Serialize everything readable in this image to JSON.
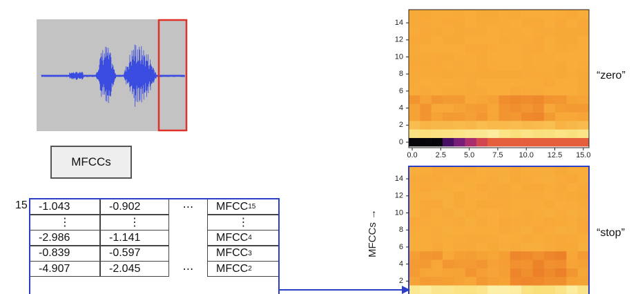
{
  "segment_button": {
    "label": "MFCCs"
  },
  "table": {
    "row_label": "15",
    "rows": [
      {
        "a": "-1.043",
        "b": "-0.902",
        "dots": "⋯",
        "mfcc": {
          "text": "MFCC",
          "sub": "15"
        }
      },
      {
        "a": "⋮",
        "b": "⋮",
        "mfcc": {
          "text": "⋮"
        }
      },
      {
        "a": "-2.986",
        "b": "-1.141",
        "mfcc": {
          "text": "MFCC",
          "sub": "4"
        }
      },
      {
        "a": "-0.839",
        "b": "-0.597",
        "mfcc": {
          "text": "MFCC",
          "sub": "3"
        }
      },
      {
        "a": "-4.907",
        "b": "-2.045",
        "dots": "⋯",
        "mfcc": {
          "text": "MFCC",
          "sub": "2"
        }
      }
    ]
  },
  "heatmaps": [
    {
      "label": "“zero”",
      "yticks": [
        "0",
        "2",
        "4",
        "6",
        "8",
        "10",
        "12",
        "14"
      ],
      "xticks": [
        "0.0",
        "2.5",
        "5.0",
        "7.5",
        "10.0",
        "12.5",
        "15.0"
      ]
    },
    {
      "label": "“stop”",
      "axis_label": "MFCCs →",
      "yticks": [
        "2",
        "4",
        "6",
        "8",
        "10",
        "12",
        "14"
      ]
    }
  ]
}
